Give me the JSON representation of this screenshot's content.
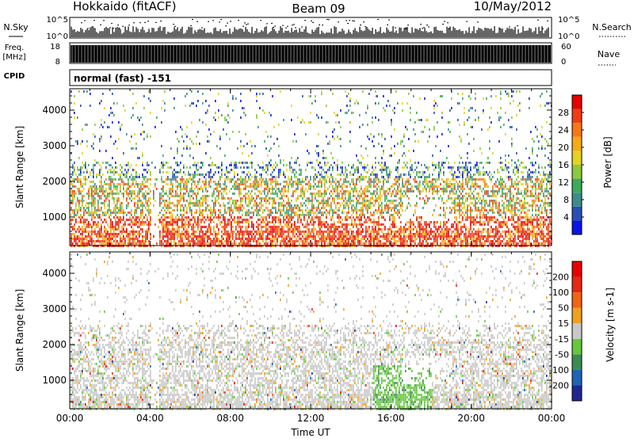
{
  "header": {
    "station": "Hokkaido (fitACF)",
    "beam": "Beam 09",
    "date": "10/May/2012"
  },
  "panels": {
    "nsky": {
      "left_label": "N.Sky",
      "right_label": "N.Search",
      "left_ticks": [
        "10^5",
        "10^0"
      ],
      "right_ticks": [
        "10^5",
        "10^0"
      ]
    },
    "freq": {
      "left_label_1": "Freq.",
      "left_label_2": "[MHz]",
      "right_label": "Nave",
      "left_ticks": [
        "18",
        "8"
      ],
      "right_ticks": [
        "60",
        "0"
      ]
    },
    "cpid": {
      "left_label": "CPID",
      "mode_text": "normal (fast) -151"
    }
  },
  "chart_data": [
    {
      "type": "heatmap",
      "title": "",
      "xlabel": "",
      "ylabel": "Slant Range [km]",
      "x_ticks": [
        "00:00",
        "04:00",
        "08:00",
        "12:00",
        "16:00",
        "20:00",
        "00:00"
      ],
      "y_ticks": [
        1000,
        2000,
        3000,
        4000
      ],
      "ylim": [
        200,
        4600
      ],
      "colorbar": {
        "label": "Power [dB]",
        "ticks": [
          4,
          8,
          12,
          16,
          20,
          24,
          28
        ],
        "range": [
          0,
          32
        ],
        "colors": [
          "#0a14e6",
          "#2850b4",
          "#3c8c8c",
          "#3caa5a",
          "#8cc83c",
          "#e6d21e",
          "#f5aa14",
          "#f57814",
          "#f03c14",
          "#e60000"
        ]
      }
    },
    {
      "type": "heatmap",
      "title": "",
      "xlabel": "Time UT",
      "ylabel": "Slant Range [km]",
      "x_ticks": [
        "00:00",
        "04:00",
        "08:00",
        "12:00",
        "16:00",
        "20:00",
        "00:00"
      ],
      "y_ticks": [
        1000,
        2000,
        3000,
        4000
      ],
      "ylim": [
        200,
        4600
      ],
      "colorbar": {
        "label": "Velocity [m s-1]",
        "ticks": [
          200,
          100,
          50,
          15,
          -15,
          -50,
          -100,
          -200
        ],
        "colors": [
          "#1e2890",
          "#1e64b4",
          "#3c8c50",
          "#64c83c",
          "#c8c8c8",
          "#f0a01e",
          "#f06414",
          "#e62814",
          "#e60000"
        ]
      }
    }
  ]
}
